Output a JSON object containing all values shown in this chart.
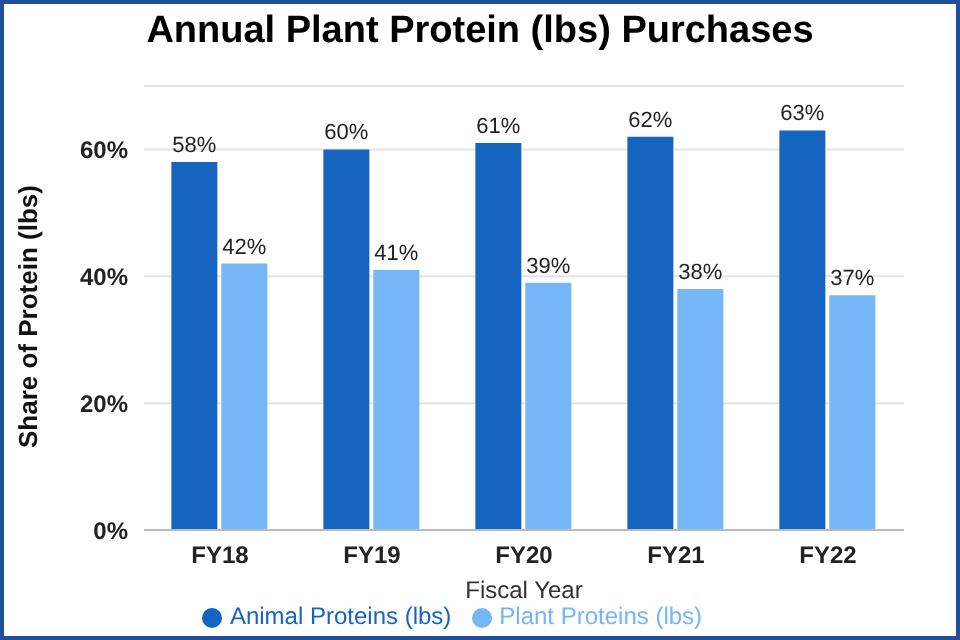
{
  "chart_data": {
    "type": "bar",
    "title": "Annual Plant Protein (lbs) Purchases",
    "xlabel": "Fiscal Year",
    "ylabel": "Share of Protein (lbs)",
    "categories": [
      "FY18",
      "FY19",
      "FY20",
      "FY21",
      "FY22"
    ],
    "series": [
      {
        "name": "Animal Proteins (lbs)",
        "color": "#1565c0",
        "values": [
          58,
          60,
          61,
          62,
          63
        ],
        "value_labels": [
          "58%",
          "60%",
          "61%",
          "62%",
          "63%"
        ]
      },
      {
        "name": "Plant Proteins (lbs)",
        "color": "#74b6f7",
        "values": [
          42,
          41,
          39,
          38,
          37
        ],
        "value_labels": [
          "42%",
          "41%",
          "39%",
          "38%",
          "37%"
        ]
      }
    ],
    "ylim": [
      0,
      70
    ],
    "yticks": [
      {
        "value": 0,
        "label": "0%"
      },
      {
        "value": 20,
        "label": "20%"
      },
      {
        "value": 40,
        "label": "40%"
      },
      {
        "value": 60,
        "label": "60%"
      }
    ],
    "grid": "y",
    "legend": "bottom"
  }
}
